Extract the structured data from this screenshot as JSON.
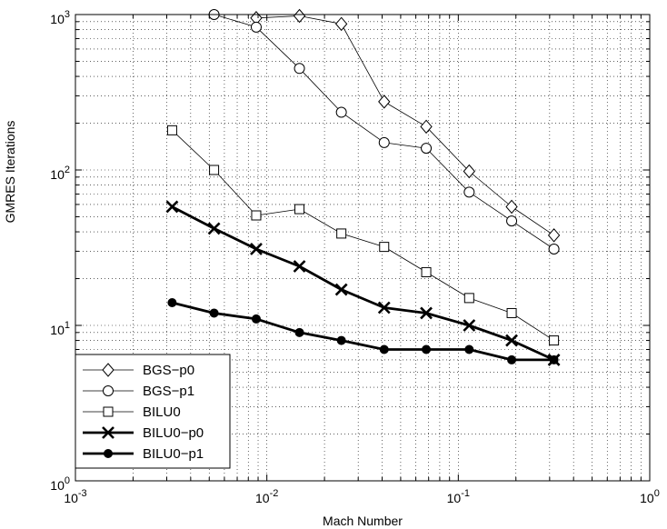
{
  "chart_data": {
    "type": "line",
    "title": "",
    "xlabel": "Mach Number",
    "ylabel": "GMRES Iterations",
    "xscale": "log",
    "yscale": "log",
    "xlim": [
      0.001,
      1
    ],
    "ylim": [
      1,
      1000
    ],
    "grid": true,
    "legend_position": "bottom-left",
    "x_ticks": [
      0.001,
      0.01,
      0.1,
      1
    ],
    "y_ticks": [
      1,
      10,
      100,
      1000
    ],
    "series": [
      {
        "name": "BGS−p0",
        "marker": "diamond",
        "line": "thin",
        "x": [
          0.0088,
          0.0148,
          0.0245,
          0.041,
          0.068,
          0.114,
          0.19,
          0.316
        ],
        "y": [
          950,
          980,
          870,
          275,
          190,
          98,
          58,
          38
        ]
      },
      {
        "name": "BGS−p1",
        "marker": "circle-open",
        "line": "thin",
        "x": [
          0.0053,
          0.0088,
          0.0148,
          0.0245,
          0.041,
          0.068,
          0.114,
          0.19,
          0.316
        ],
        "y": [
          1000,
          830,
          450,
          235,
          150,
          138,
          72,
          47,
          31
        ]
      },
      {
        "name": "BILU0",
        "marker": "square",
        "line": "thin",
        "x": [
          0.0032,
          0.0053,
          0.0088,
          0.0148,
          0.0245,
          0.041,
          0.068,
          0.114,
          0.19,
          0.316
        ],
        "y": [
          180,
          100,
          51,
          56,
          39,
          32,
          22,
          15,
          12,
          8
        ]
      },
      {
        "name": "BILU0−p0",
        "marker": "x",
        "line": "thick",
        "x": [
          0.0032,
          0.0053,
          0.0088,
          0.0148,
          0.0245,
          0.041,
          0.068,
          0.114,
          0.19,
          0.316
        ],
        "y": [
          58,
          42,
          31,
          24,
          17,
          13,
          12,
          10,
          8,
          6
        ]
      },
      {
        "name": "BILU0−p1",
        "marker": "dot",
        "line": "thick",
        "x": [
          0.0032,
          0.0053,
          0.0088,
          0.0148,
          0.0245,
          0.041,
          0.068,
          0.114,
          0.19,
          0.316
        ],
        "y": [
          14,
          12,
          11,
          9,
          8,
          7,
          7,
          7,
          6,
          6
        ]
      }
    ]
  }
}
